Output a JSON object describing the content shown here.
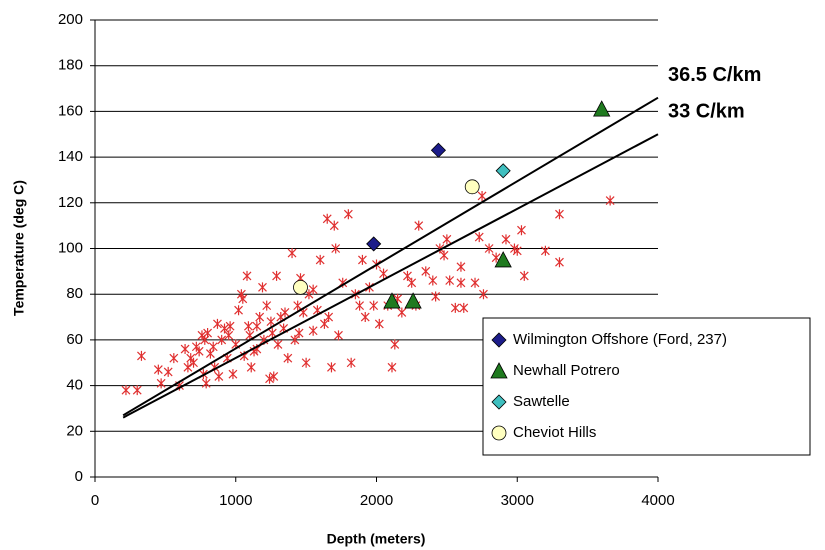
{
  "chart_data": {
    "type": "scatter",
    "xlabel": "Depth (meters)",
    "ylabel": "Temperature (deg C)",
    "xlim": [
      0,
      4000
    ],
    "xticks": [
      0,
      1000,
      2000,
      3000,
      4000
    ],
    "ylim": [
      0,
      200
    ],
    "yticks": [
      0,
      20,
      40,
      60,
      80,
      100,
      120,
      140,
      160,
      180,
      200
    ],
    "grid": true,
    "legend": "lower right",
    "series": [
      {
        "marker": "asterisk",
        "color": "#e03030",
        "x": [
          220,
          300,
          330,
          450,
          470,
          520,
          560,
          600,
          640,
          660,
          680,
          700,
          720,
          740,
          760,
          770,
          780,
          790,
          800,
          820,
          840,
          850,
          870,
          880,
          900,
          920,
          940,
          960,
          980,
          1000,
          1020,
          1040,
          1060,
          1080,
          1090,
          1100,
          1110,
          1130,
          1150,
          1170,
          1190,
          1200,
          1220,
          1240,
          1260,
          1270,
          1290,
          1300,
          1320,
          1340,
          1370,
          1400,
          1420,
          1440,
          1460,
          1480,
          1500,
          1520,
          1550,
          1580,
          1600,
          1630,
          1650,
          1660,
          1680,
          1700,
          1710,
          1730,
          1760,
          1800,
          1820,
          1850,
          1880,
          1900,
          1920,
          1950,
          1980,
          2000,
          2020,
          2050,
          2080,
          2110,
          2130,
          2180,
          2220,
          2250,
          2280,
          2300,
          2350,
          2400,
          2420,
          2450,
          2480,
          2500,
          2520,
          2560,
          2600,
          2620,
          2700,
          2730,
          2750,
          2760,
          2800,
          2850,
          2920,
          2980,
          3000,
          3030,
          3050,
          3200,
          3300,
          3300,
          3660,
          1050,
          950,
          1150,
          1250,
          1350,
          1450,
          1550,
          2150,
          2600
        ],
        "values": [
          38,
          38,
          53,
          47,
          41,
          46,
          52,
          40,
          56,
          48,
          52,
          50,
          57,
          55,
          62,
          45,
          60,
          41,
          63,
          54,
          57,
          48,
          67,
          44,
          60,
          65,
          52,
          66,
          45,
          58,
          73,
          80,
          53,
          88,
          66,
          62,
          48,
          55,
          66,
          70,
          83,
          60,
          75,
          43,
          63,
          44,
          88,
          58,
          70,
          65,
          52,
          98,
          60,
          75,
          87,
          72,
          50,
          80,
          64,
          73,
          95,
          67,
          113,
          70,
          48,
          110,
          100,
          62,
          85,
          115,
          50,
          80,
          75,
          95,
          70,
          83,
          75,
          93,
          67,
          89,
          75,
          48,
          58,
          72,
          88,
          85,
          75,
          110,
          90,
          86,
          79,
          100,
          97,
          104,
          86,
          74,
          92,
          74,
          85,
          105,
          123,
          80,
          100,
          96,
          104,
          100,
          99,
          108,
          88,
          99,
          115,
          94,
          121,
          78,
          62,
          56,
          68,
          72,
          63,
          82,
          78,
          85
        ]
      },
      {
        "name": "Wilmington Offshore (Ford, 237)",
        "marker": "diamond",
        "color": "#1c1c8a",
        "x": [
          1980,
          2440
        ],
        "values": [
          102,
          143
        ]
      },
      {
        "name": "Newhall Potrero",
        "marker": "triangle",
        "color": "#1f7a1f",
        "x": [
          2110,
          2260,
          2900,
          3600
        ],
        "values": [
          77,
          77,
          95,
          161
        ]
      },
      {
        "name": "Sawtelle",
        "marker": "diamond",
        "color": "#3fbfbf",
        "x": [
          2900
        ],
        "values": [
          134
        ]
      },
      {
        "name": "Cheviot Hills",
        "marker": "circle",
        "color": "#ffffc0",
        "x": [
          1460,
          2680
        ],
        "values": [
          83,
          127
        ]
      },
      {
        "name": "36.5 C/km",
        "marker": "line",
        "color": "#000000",
        "x": [
          200,
          4000
        ],
        "values": [
          27,
          166
        ]
      },
      {
        "name": "33 C/km",
        "marker": "line",
        "color": "#000000",
        "x": [
          200,
          4000
        ],
        "values": [
          26,
          150
        ]
      }
    ]
  }
}
